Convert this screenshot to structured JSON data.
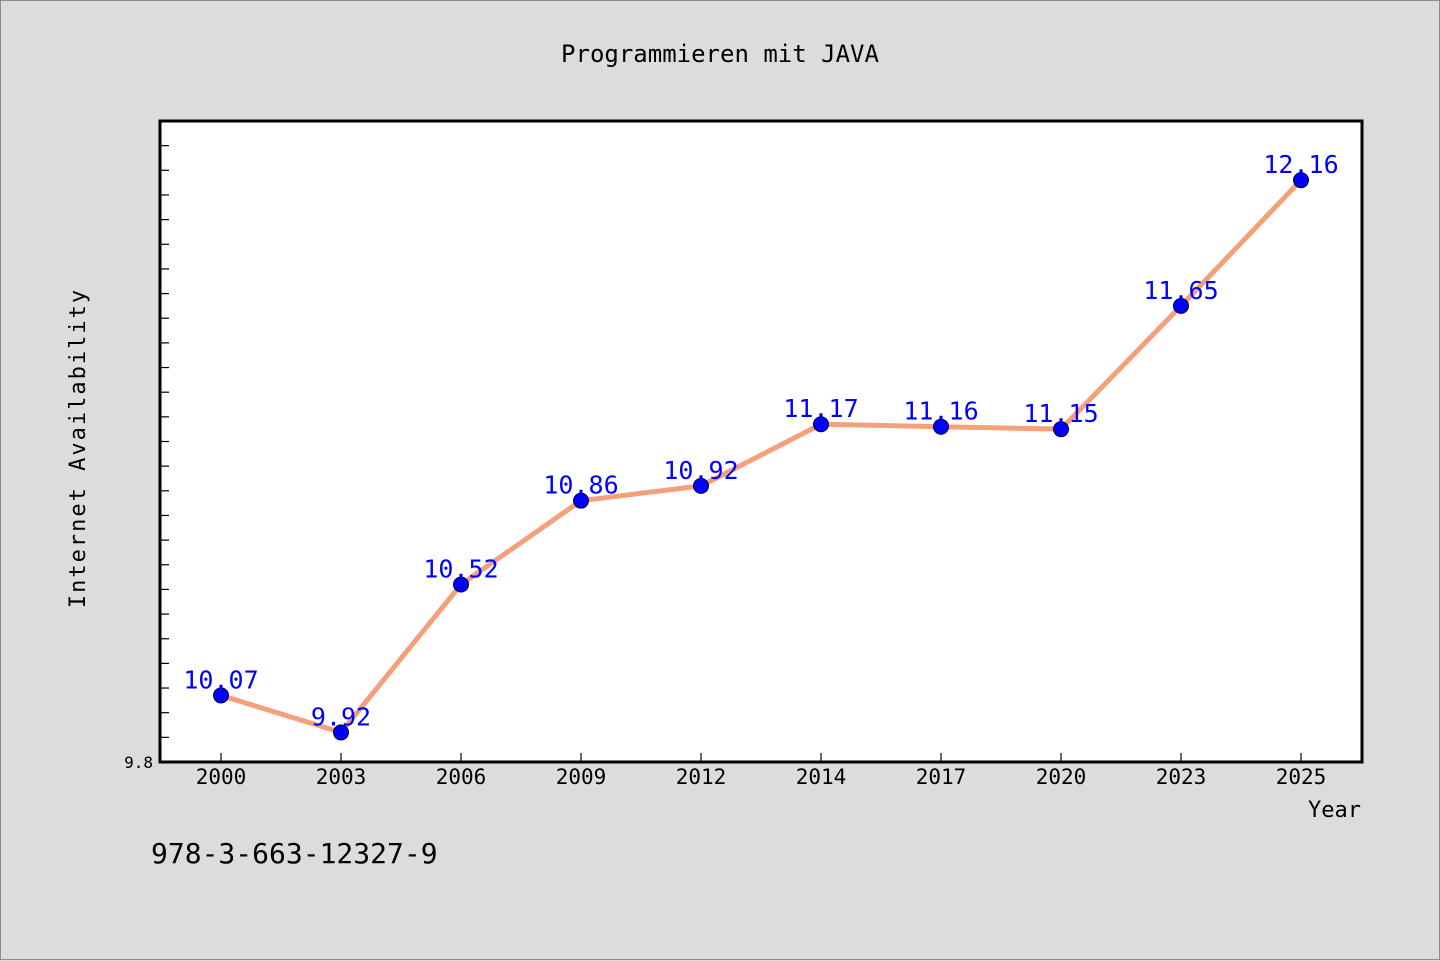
{
  "chart_data": {
    "type": "line",
    "title": "Programmieren mit JAVA",
    "xlabel": "Year",
    "ylabel": "Internet Availability",
    "categories": [
      "2000",
      "2003",
      "2006",
      "2009",
      "2012",
      "2014",
      "2017",
      "2020",
      "2023",
      "2025"
    ],
    "series": [
      {
        "values": [
          10.07,
          9.92,
          10.52,
          10.86,
          10.92,
          11.17,
          11.16,
          11.15,
          11.65,
          12.16
        ]
      }
    ],
    "data_labels": [
      "10.07",
      "9.92",
      "10.52",
      "10.86",
      "10.92",
      "11.17",
      "11.16",
      "11.15",
      "11.65",
      "12.16"
    ],
    "ylim": [
      9.8,
      12.4
    ],
    "y_tick_labels": [
      "9.8"
    ],
    "grid": false,
    "colors": {
      "line": "#f4a07a",
      "marker": "#0000ff",
      "data_label": "#0000ff",
      "plot_background": "#ffffff",
      "page_background": "#dcdcdc"
    }
  },
  "footer": {
    "isbn": "978-3-663-12327-9"
  }
}
